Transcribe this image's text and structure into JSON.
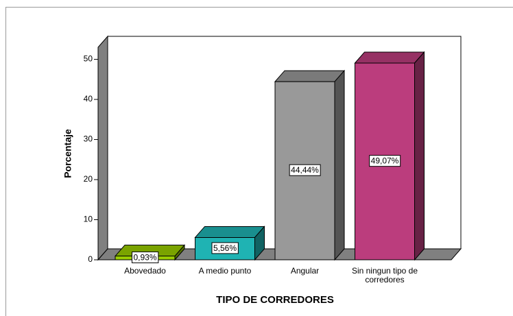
{
  "chart_data": {
    "type": "bar",
    "xlabel": "TIPO DE CORREDORES",
    "ylabel": "Porcentaje",
    "categories": [
      "Abovedado",
      "A medio punto",
      "Angular",
      "Sin ningun tipo de corredores"
    ],
    "values": [
      0.93,
      5.56,
      44.44,
      49.07
    ],
    "value_labels": [
      "0,93%",
      "5,56%",
      "44,44%",
      "49,07%"
    ],
    "colors": [
      "#99cc00",
      "#1fb3b3",
      "#999999",
      "#bb3d7d"
    ],
    "ylim": [
      0,
      53
    ],
    "yticks": [
      0,
      10,
      20,
      30,
      40,
      50
    ]
  }
}
